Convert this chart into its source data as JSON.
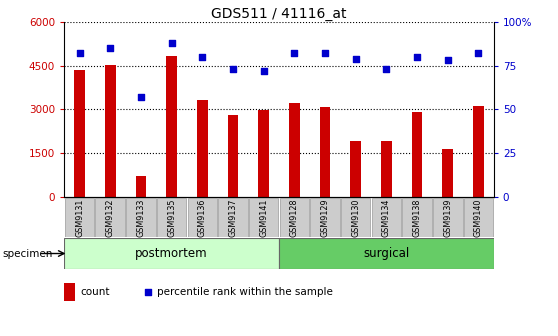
{
  "title": "GDS511 / 41116_at",
  "samples": [
    "GSM9131",
    "GSM9132",
    "GSM9133",
    "GSM9135",
    "GSM9136",
    "GSM9137",
    "GSM9141",
    "GSM9128",
    "GSM9129",
    "GSM9130",
    "GSM9134",
    "GSM9138",
    "GSM9139",
    "GSM9140"
  ],
  "counts": [
    4350,
    4520,
    700,
    4820,
    3300,
    2800,
    2980,
    3200,
    3080,
    1900,
    1900,
    2920,
    1650,
    3100
  ],
  "percentiles": [
    82,
    85,
    57,
    88,
    80,
    73,
    72,
    82,
    82,
    79,
    73,
    80,
    78,
    82
  ],
  "bar_color": "#cc0000",
  "dot_color": "#0000cc",
  "group1_label": "postmortem",
  "group2_label": "surgical",
  "group1_count": 7,
  "group2_count": 7,
  "group1_color": "#ccffcc",
  "group2_color": "#66cc66",
  "ylim_left": [
    0,
    6000
  ],
  "ylim_right": [
    0,
    100
  ],
  "yticks_left": [
    0,
    1500,
    3000,
    4500,
    6000
  ],
  "yticks_right": [
    0,
    25,
    50,
    75,
    100
  ],
  "specimen_label": "specimen",
  "legend_count_label": "count",
  "legend_pct_label": "percentile rank within the sample",
  "tick_bg_color": "#cccccc",
  "background_color": "#ffffff",
  "figwidth": 5.58,
  "figheight": 3.36,
  "dpi": 100
}
